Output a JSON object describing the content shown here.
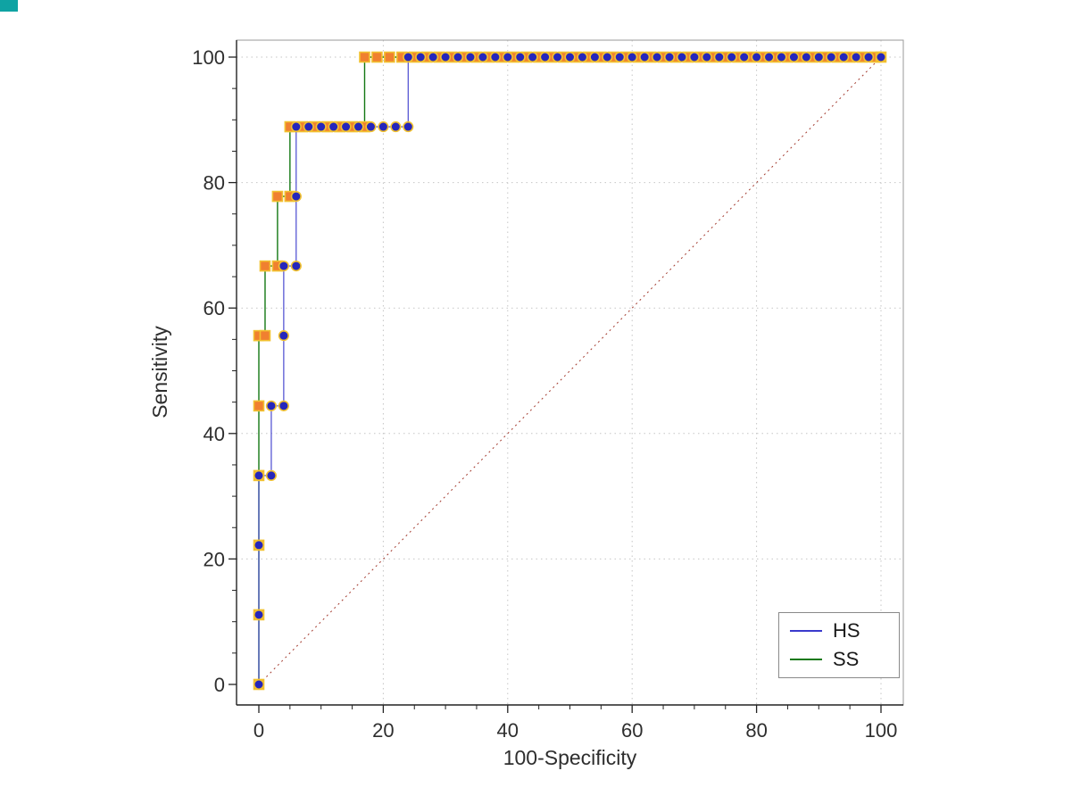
{
  "window": {
    "background": "#ffffff",
    "corner_artifact_color": "#0fa3a3"
  },
  "axes": {
    "xlabel": "100-Specificity",
    "ylabel": "Sensitivity",
    "x_tick_labels": [
      "0",
      "20",
      "40",
      "60",
      "80",
      "100"
    ],
    "y_tick_labels": [
      "0",
      "20",
      "40",
      "60",
      "80",
      "100"
    ]
  },
  "legend": {
    "items": [
      {
        "label": "HS",
        "color": "#3a3acc"
      },
      {
        "label": "SS",
        "color": "#137813"
      }
    ]
  },
  "chart_data": {
    "type": "line",
    "subtype": "roc-step-curves",
    "title": "",
    "xlabel": "100-Specificity",
    "ylabel": "Sensitivity",
    "xlim": [
      0,
      100
    ],
    "ylim": [
      0,
      100
    ],
    "xticks": [
      0,
      20,
      40,
      60,
      80,
      100
    ],
    "yticks": [
      0,
      20,
      40,
      60,
      80,
      100
    ],
    "minor_tick_step": 5,
    "grid": true,
    "grid_color": "#c5c5c5",
    "legend_position": "bottom-right",
    "reference_line": {
      "type": "diagonal",
      "from": [
        0,
        0
      ],
      "to": [
        100,
        100
      ],
      "color": "#a33a2e",
      "style": "dotted"
    },
    "series": [
      {
        "name": "HS",
        "line_color": "#3a3acc",
        "marker": "circle",
        "marker_fill": "#2626bb",
        "marker_edge": "#f2c230",
        "points": [
          [
            0,
            0
          ],
          [
            0,
            11.1
          ],
          [
            0,
            22.2
          ],
          [
            0,
            33.3
          ],
          [
            2,
            33.3
          ],
          [
            2,
            44.4
          ],
          [
            4,
            44.4
          ],
          [
            4,
            55.6
          ],
          [
            4,
            66.7
          ],
          [
            6,
            66.7
          ],
          [
            6,
            77.8
          ],
          [
            6,
            88.9
          ],
          [
            8,
            88.9
          ],
          [
            10,
            88.9
          ],
          [
            12,
            88.9
          ],
          [
            14,
            88.9
          ],
          [
            16,
            88.9
          ],
          [
            18,
            88.9
          ],
          [
            20,
            88.9
          ],
          [
            22,
            88.9
          ],
          [
            24,
            88.9
          ],
          [
            24,
            100
          ],
          [
            26,
            100
          ],
          [
            28,
            100
          ],
          [
            30,
            100
          ],
          [
            32,
            100
          ],
          [
            34,
            100
          ],
          [
            36,
            100
          ],
          [
            38,
            100
          ],
          [
            40,
            100
          ],
          [
            42,
            100
          ],
          [
            44,
            100
          ],
          [
            46,
            100
          ],
          [
            48,
            100
          ],
          [
            50,
            100
          ],
          [
            52,
            100
          ],
          [
            54,
            100
          ],
          [
            56,
            100
          ],
          [
            58,
            100
          ],
          [
            60,
            100
          ],
          [
            62,
            100
          ],
          [
            64,
            100
          ],
          [
            66,
            100
          ],
          [
            68,
            100
          ],
          [
            70,
            100
          ],
          [
            72,
            100
          ],
          [
            74,
            100
          ],
          [
            76,
            100
          ],
          [
            78,
            100
          ],
          [
            80,
            100
          ],
          [
            82,
            100
          ],
          [
            84,
            100
          ],
          [
            86,
            100
          ],
          [
            88,
            100
          ],
          [
            90,
            100
          ],
          [
            92,
            100
          ],
          [
            94,
            100
          ],
          [
            96,
            100
          ],
          [
            98,
            100
          ],
          [
            100,
            100
          ]
        ]
      },
      {
        "name": "SS",
        "line_color": "#137813",
        "marker": "square",
        "marker_fill": "#f08030",
        "marker_edge": "#f2c230",
        "points": [
          [
            0,
            0
          ],
          [
            0,
            11.1
          ],
          [
            0,
            22.2
          ],
          [
            0,
            33.3
          ],
          [
            0,
            44.4
          ],
          [
            0,
            55.6
          ],
          [
            1,
            55.6
          ],
          [
            1,
            66.7
          ],
          [
            3,
            66.7
          ],
          [
            3,
            77.8
          ],
          [
            5,
            77.8
          ],
          [
            5,
            88.9
          ],
          [
            7,
            88.9
          ],
          [
            9,
            88.9
          ],
          [
            11,
            88.9
          ],
          [
            13,
            88.9
          ],
          [
            15,
            88.9
          ],
          [
            17,
            88.9
          ],
          [
            17,
            100
          ],
          [
            19,
            100
          ],
          [
            21,
            100
          ],
          [
            23,
            100
          ],
          [
            25,
            100
          ],
          [
            27,
            100
          ],
          [
            29,
            100
          ],
          [
            31,
            100
          ],
          [
            33,
            100
          ],
          [
            35,
            100
          ],
          [
            37,
            100
          ],
          [
            39,
            100
          ],
          [
            41,
            100
          ],
          [
            43,
            100
          ],
          [
            45,
            100
          ],
          [
            47,
            100
          ],
          [
            49,
            100
          ],
          [
            51,
            100
          ],
          [
            53,
            100
          ],
          [
            55,
            100
          ],
          [
            57,
            100
          ],
          [
            59,
            100
          ],
          [
            61,
            100
          ],
          [
            63,
            100
          ],
          [
            65,
            100
          ],
          [
            67,
            100
          ],
          [
            69,
            100
          ],
          [
            71,
            100
          ],
          [
            73,
            100
          ],
          [
            75,
            100
          ],
          [
            77,
            100
          ],
          [
            79,
            100
          ],
          [
            81,
            100
          ],
          [
            83,
            100
          ],
          [
            85,
            100
          ],
          [
            87,
            100
          ],
          [
            89,
            100
          ],
          [
            91,
            100
          ],
          [
            93,
            100
          ],
          [
            95,
            100
          ],
          [
            97,
            100
          ],
          [
            99,
            100
          ],
          [
            100,
            100
          ]
        ]
      }
    ]
  }
}
